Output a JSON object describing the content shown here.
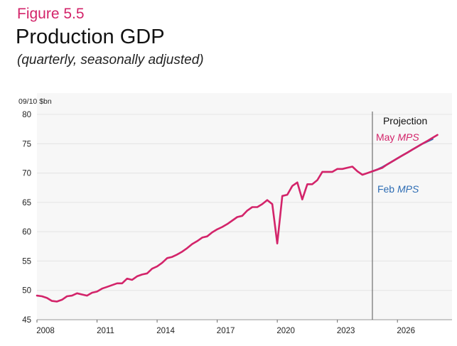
{
  "figure": {
    "label": "Figure 5.5",
    "title": "Production GDP",
    "subtitle": "(quarterly, seasonally adjusted)"
  },
  "colors": {
    "may": "#d3246a",
    "feb": "#2e6db4",
    "grid": "#e4e4e4",
    "plot_bg": "#f7f7f7",
    "divider": "#555555"
  },
  "chart_data": {
    "type": "line",
    "title": "Production GDP",
    "subtitle": "(quarterly, seasonally adjusted)",
    "ylabel": "09/10 $bn",
    "xlabel": "",
    "ylim": [
      45,
      80
    ],
    "yticks": [
      45,
      50,
      55,
      60,
      65,
      70,
      75,
      80
    ],
    "xlim": [
      2008.0,
      2028.3
    ],
    "xticks": [
      {
        "value": 2008.0,
        "label": "2008"
      },
      {
        "value": 2011.0,
        "label": "2011"
      },
      {
        "value": 2014.0,
        "label": "2014"
      },
      {
        "value": 2017.0,
        "label": "2017"
      },
      {
        "value": 2020.0,
        "label": "2020"
      },
      {
        "value": 2023.0,
        "label": "2023"
      },
      {
        "value": 2026.0,
        "label": "2026"
      }
    ],
    "grid": true,
    "projection": {
      "start": 2024.75,
      "label": "Projection"
    },
    "annotations": {
      "may": {
        "prefix": "May ",
        "italic": "MPS"
      },
      "feb": {
        "prefix": "Feb ",
        "italic": "MPS"
      }
    },
    "series": [
      {
        "name": "May MPS",
        "color": "#d3246a",
        "x": [
          2008.0,
          2008.25,
          2008.5,
          2008.75,
          2009.0,
          2009.25,
          2009.5,
          2009.75,
          2010.0,
          2010.25,
          2010.5,
          2010.75,
          2011.0,
          2011.25,
          2011.5,
          2011.75,
          2012.0,
          2012.25,
          2012.5,
          2012.75,
          2013.0,
          2013.25,
          2013.5,
          2013.75,
          2014.0,
          2014.25,
          2014.5,
          2014.75,
          2015.0,
          2015.25,
          2015.5,
          2015.75,
          2016.0,
          2016.25,
          2016.5,
          2016.75,
          2017.0,
          2017.25,
          2017.5,
          2017.75,
          2018.0,
          2018.25,
          2018.5,
          2018.75,
          2019.0,
          2019.25,
          2019.5,
          2019.75,
          2020.0,
          2020.25,
          2020.5,
          2020.75,
          2021.0,
          2021.25,
          2021.5,
          2021.75,
          2022.0,
          2022.25,
          2022.5,
          2022.75,
          2023.0,
          2023.25,
          2023.5,
          2023.75,
          2024.0,
          2024.25,
          2024.5,
          2024.75,
          2025.0,
          2025.25,
          2025.5,
          2025.75,
          2026.0,
          2026.25,
          2026.5,
          2026.75,
          2027.0,
          2027.25,
          2027.5,
          2027.75,
          2028.0
        ],
        "values": [
          49.1,
          49.0,
          48.7,
          48.2,
          48.1,
          48.4,
          49.0,
          49.1,
          49.5,
          49.3,
          49.1,
          49.6,
          49.8,
          50.3,
          50.6,
          50.9,
          51.2,
          51.2,
          52.0,
          51.8,
          52.4,
          52.7,
          52.9,
          53.7,
          54.1,
          54.7,
          55.5,
          55.7,
          56.1,
          56.6,
          57.2,
          57.9,
          58.4,
          59.0,
          59.2,
          59.9,
          60.4,
          60.8,
          61.3,
          61.9,
          62.5,
          62.7,
          63.6,
          64.2,
          64.2,
          64.7,
          65.4,
          64.7,
          58.0,
          66.1,
          66.3,
          67.8,
          68.4,
          65.5,
          68.1,
          68.1,
          68.8,
          70.2,
          70.2,
          70.2,
          70.7,
          70.7,
          70.9,
          71.1,
          70.3,
          69.7,
          70.0,
          70.3,
          70.6,
          70.9,
          71.5,
          72.0,
          72.5,
          73.0,
          73.5,
          74.0,
          74.5,
          75.0,
          75.5,
          76.0,
          76.5
        ]
      },
      {
        "name": "Feb MPS",
        "color": "#2e6db4",
        "x": [
          2024.75,
          2025.0,
          2025.25,
          2025.5,
          2025.75,
          2026.0,
          2026.25,
          2026.5,
          2026.75,
          2027.0,
          2027.25,
          2027.5,
          2027.75
        ],
        "values": [
          70.3,
          70.6,
          71.0,
          71.5,
          72.0,
          72.5,
          73.0,
          73.5,
          74.0,
          74.5,
          75.0,
          75.4,
          75.8
        ]
      }
    ]
  }
}
